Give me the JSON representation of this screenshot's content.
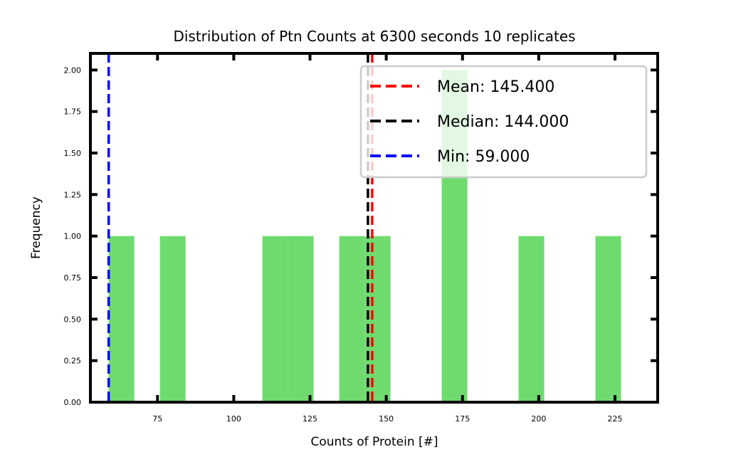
{
  "chart_data": {
    "type": "bar",
    "title": "Distribution of Ptn Counts at 6300 seconds 10 replicates",
    "xlabel": "Counts of Protein [#]",
    "ylabel": "Frequency",
    "xlim": [
      53,
      239
    ],
    "ylim": [
      0,
      2.1
    ],
    "x_ticks": [
      75,
      100,
      125,
      150,
      175,
      200,
      225
    ],
    "x_tick_labels": [
      "75",
      "100",
      "125",
      "150",
      "175",
      "200",
      "225"
    ],
    "y_ticks": [
      0,
      0.25,
      0.5,
      0.75,
      1.0,
      1.25,
      1.5,
      1.75,
      2.0
    ],
    "y_tick_labels": [
      "0.00",
      "0.25",
      "0.50",
      "0.75",
      "1.00",
      "1.25",
      "1.50",
      "1.75",
      "2.00"
    ],
    "bins": [
      {
        "x0": 59.0,
        "x1": 67.4,
        "count": 1
      },
      {
        "x0": 75.8,
        "x1": 84.2,
        "count": 1
      },
      {
        "x0": 109.4,
        "x1": 117.8,
        "count": 1
      },
      {
        "x0": 117.8,
        "x1": 126.2,
        "count": 1
      },
      {
        "x0": 134.6,
        "x1": 143.0,
        "count": 1
      },
      {
        "x0": 143.0,
        "x1": 151.4,
        "count": 1
      },
      {
        "x0": 168.2,
        "x1": 176.6,
        "count": 2
      },
      {
        "x0": 193.4,
        "x1": 201.8,
        "count": 1
      },
      {
        "x0": 218.6,
        "x1": 227.0,
        "count": 1
      }
    ],
    "bar_color": "#6fdb6f",
    "lines": [
      {
        "label": "Mean: 145.400",
        "x": 145.4,
        "color": "#ff0000"
      },
      {
        "label": "Median: 144.000",
        "x": 144.0,
        "color": "#000000"
      },
      {
        "label": "Min: 59.000",
        "x": 59.0,
        "color": "#0000ff"
      }
    ],
    "legend_position": "top-right",
    "grid": false
  }
}
